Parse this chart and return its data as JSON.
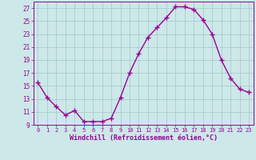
{
  "x": [
    0,
    1,
    2,
    3,
    4,
    5,
    6,
    7,
    8,
    9,
    10,
    11,
    12,
    13,
    14,
    15,
    16,
    17,
    18,
    19,
    20,
    21,
    22,
    23
  ],
  "y": [
    15.5,
    13.2,
    11.8,
    10.5,
    11.2,
    9.5,
    9.5,
    9.5,
    10.0,
    13.2,
    17.0,
    20.0,
    22.5,
    24.0,
    25.5,
    27.2,
    27.2,
    26.8,
    25.2,
    23.0,
    19.0,
    16.2,
    14.5,
    14.0
  ],
  "line_color": "#990099",
  "marker": "+",
  "marker_size": 4,
  "marker_lw": 1.0,
  "line_width": 1.0,
  "bg_color": "#cce8e8",
  "grid_color": "#aacccc",
  "xlabel": "Windchill (Refroidissement éolien,°C)",
  "xlabel_color": "#990099",
  "tick_color": "#990099",
  "ylim": [
    9,
    28
  ],
  "yticks": [
    9,
    11,
    13,
    15,
    17,
    19,
    21,
    23,
    25,
    27
  ],
  "xlim": [
    -0.5,
    23.5
  ],
  "xticks": [
    0,
    1,
    2,
    3,
    4,
    5,
    6,
    7,
    8,
    9,
    10,
    11,
    12,
    13,
    14,
    15,
    16,
    17,
    18,
    19,
    20,
    21,
    22,
    23
  ],
  "spine_color": "#990099",
  "tick_label_fontsize": 5.0,
  "xlabel_fontsize": 6.0,
  "ylabel_fontsize": 5.5
}
